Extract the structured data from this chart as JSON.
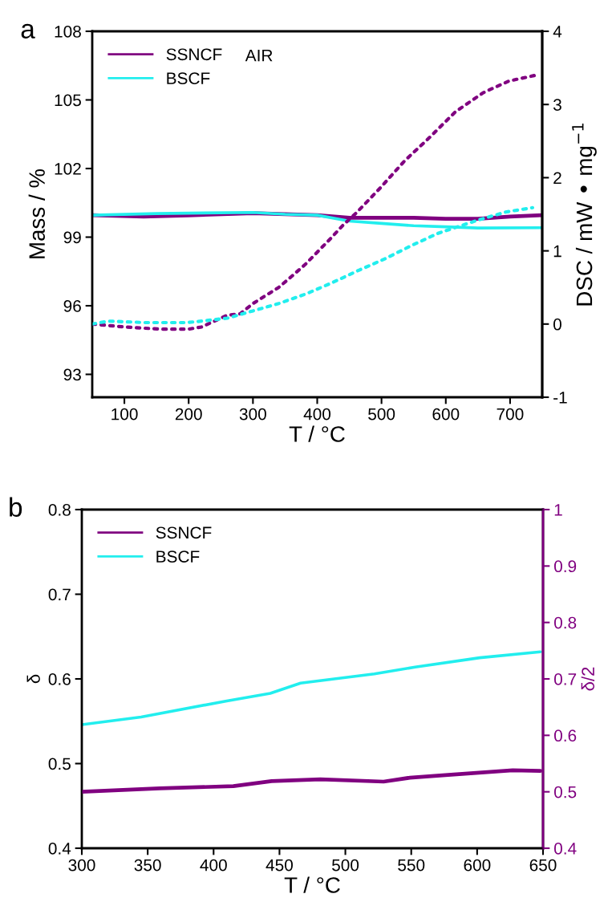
{
  "chart_data": [
    {
      "type": "line",
      "annotations": [
        "a",
        "AIR"
      ],
      "xlabel": "T / °C",
      "ylabel": "Mass / %",
      "y2label": "DSC / mW • mg$^{−1}$",
      "xlim": [
        50,
        750
      ],
      "xticks": [
        100,
        200,
        300,
        400,
        500,
        600,
        700
      ],
      "ylim": [
        92,
        108
      ],
      "yticks": [
        93,
        96,
        99,
        102,
        105,
        108
      ],
      "y2lim": [
        -1,
        4
      ],
      "y2ticks": [
        -1,
        0,
        1,
        2,
        3,
        4
      ],
      "legend": "top left",
      "grid": false,
      "series": [
        {
          "name": "SSNCF",
          "color": "#800080",
          "line_style": "solid",
          "x": [
            50,
            130,
            200,
            300,
            400,
            450,
            550,
            600,
            650,
            700,
            750
          ],
          "values": [
            99.96,
            99.9,
            99.95,
            100.05,
            99.96,
            99.85,
            99.85,
            99.8,
            99.8,
            99.9,
            99.96
          ]
        },
        {
          "name": "BSCF",
          "color": "#22eeee",
          "line_style": "solid",
          "x": [
            50,
            150,
            200,
            300,
            350,
            400,
            450,
            500,
            550,
            600,
            650,
            750
          ],
          "values": [
            99.96,
            100.03,
            100.05,
            100.08,
            100.0,
            99.96,
            99.7,
            99.6,
            99.5,
            99.45,
            99.4,
            99.41
          ]
        },
        {
          "color": "#800080",
          "axis": "y2",
          "line_style": "dotted",
          "x": [
            50,
            100,
            157,
            200,
            220,
            260,
            280,
            300,
            340,
            360,
            382,
            402,
            422,
            440,
            461,
            498,
            536,
            576,
            615,
            658,
            698,
            740
          ],
          "values": [
            0.0,
            -0.04,
            -0.07,
            -0.07,
            -0.04,
            0.12,
            0.14,
            0.28,
            0.5,
            0.65,
            0.82,
            1.0,
            1.18,
            1.35,
            1.52,
            1.86,
            2.23,
            2.56,
            2.9,
            3.16,
            3.32,
            3.4
          ]
        },
        {
          "color": "#22eeee",
          "axis": "y2",
          "line_style": "dotted",
          "x": [
            50,
            75,
            132,
            197,
            220,
            240,
            260,
            300,
            340,
            382,
            422,
            466,
            505,
            546,
            588,
            650,
            693,
            735
          ],
          "values": [
            0.0,
            0.04,
            0.02,
            0.02,
            0.04,
            0.06,
            0.08,
            0.18,
            0.28,
            0.41,
            0.56,
            0.74,
            0.89,
            1.07,
            1.24,
            1.42,
            1.53,
            1.59
          ]
        }
      ]
    },
    {
      "type": "line",
      "annotations": [
        "b"
      ],
      "xlabel": "T / °C",
      "ylabel": "δ",
      "y2label": "δ/2",
      "xlim": [
        300,
        650
      ],
      "xticks": [
        300,
        350,
        400,
        450,
        500,
        550,
        600,
        650
      ],
      "ylim": [
        0.4,
        0.8
      ],
      "yticks": [
        0.4,
        0.5,
        0.6,
        0.7,
        0.8
      ],
      "y2lim": [
        0.4,
        1
      ],
      "y2ticks": [
        0.4,
        0.5,
        0.6,
        0.7,
        0.8,
        0.9,
        1
      ],
      "legend": "top left",
      "grid": false,
      "series": [
        {
          "name": "SSNCF",
          "color": "#800080",
          "axis": "y2",
          "line_style": "solid",
          "x": [
            300,
            359,
            415,
            444,
            481,
            529,
            549,
            578,
            627,
            648
          ],
          "values": [
            0.5,
            0.506,
            0.51,
            0.519,
            0.522,
            0.518,
            0.525,
            0.53,
            0.538,
            0.537
          ]
        },
        {
          "name": "BSCF",
          "color": "#22eeee",
          "line_style": "solid",
          "x": [
            300,
            345,
            410,
            443,
            466,
            522,
            553,
            602,
            648
          ],
          "values": [
            0.546,
            0.555,
            0.574,
            0.583,
            0.595,
            0.606,
            0.614,
            0.625,
            0.632
          ]
        }
      ]
    }
  ]
}
